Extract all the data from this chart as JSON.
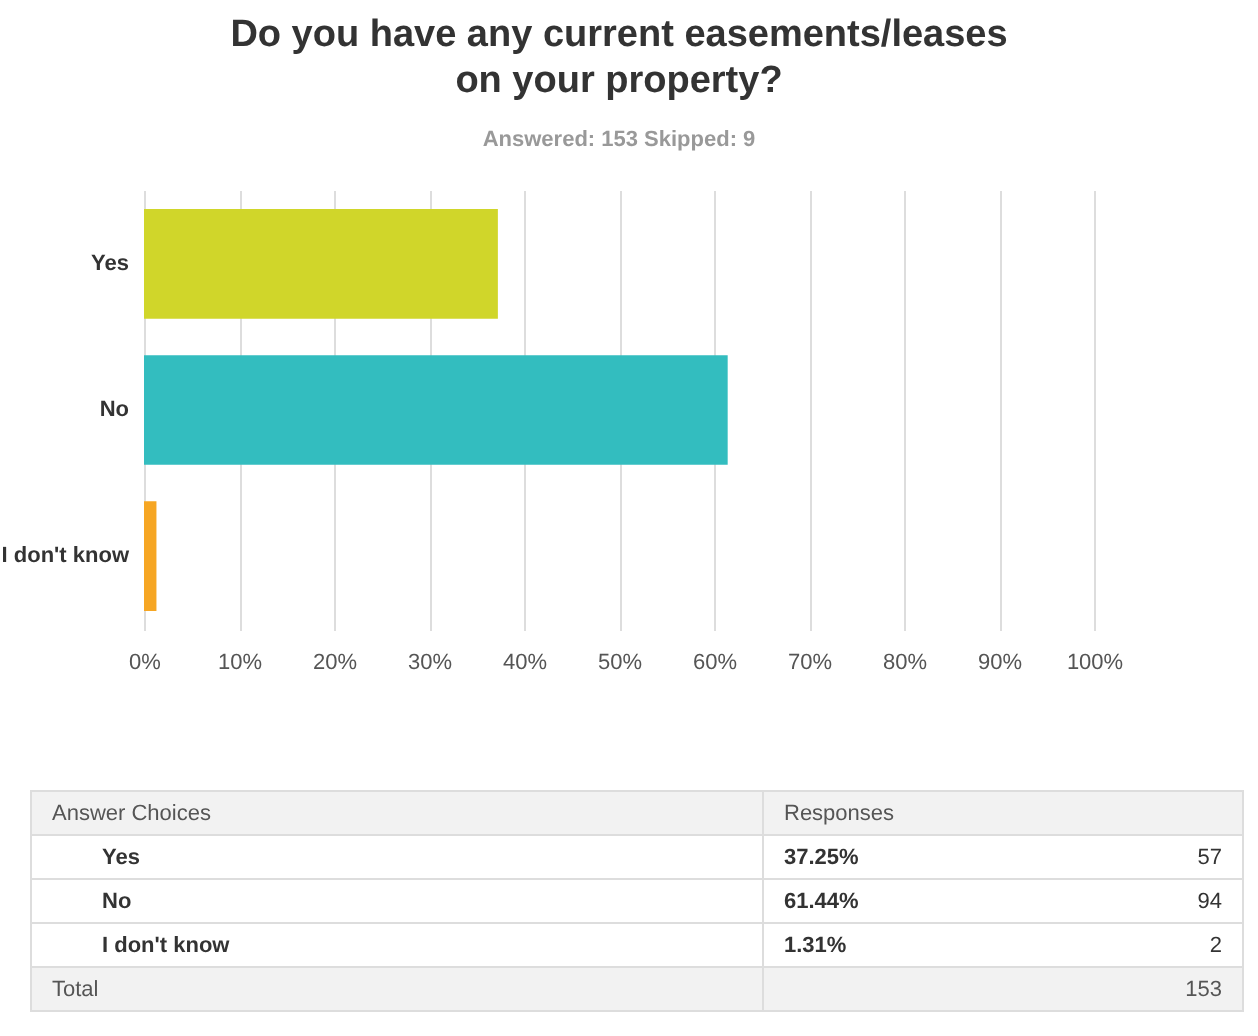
{
  "chart_data": {
    "type": "bar",
    "orientation": "horizontal",
    "title": "Do you have any current easements/leases\non your property?",
    "subtitle": "Answered: 153   Skipped: 9",
    "categories": [
      "Yes",
      "No",
      "I don't know"
    ],
    "values": [
      37.25,
      61.44,
      1.31
    ],
    "colors": [
      "#d0d62a",
      "#33bdbf",
      "#f6a623"
    ],
    "xlim": [
      0,
      100
    ],
    "xticks": [
      {
        "value": 0,
        "label": "0%"
      },
      {
        "value": 10,
        "label": "10%"
      },
      {
        "value": 20,
        "label": "20%"
      },
      {
        "value": 30,
        "label": "30%"
      },
      {
        "value": 40,
        "label": "40%"
      },
      {
        "value": 50,
        "label": "50%"
      },
      {
        "value": 60,
        "label": "60%"
      },
      {
        "value": 70,
        "label": "70%"
      },
      {
        "value": 80,
        "label": "80%"
      },
      {
        "value": 90,
        "label": "90%"
      },
      {
        "value": 100,
        "label": "100%"
      }
    ],
    "grid": "x",
    "annotations": [
      "Answer Choices",
      "Responses",
      "37.25%",
      "57",
      "61.44%",
      "94",
      "1.31%",
      "2",
      "Total",
      "153"
    ]
  }
}
